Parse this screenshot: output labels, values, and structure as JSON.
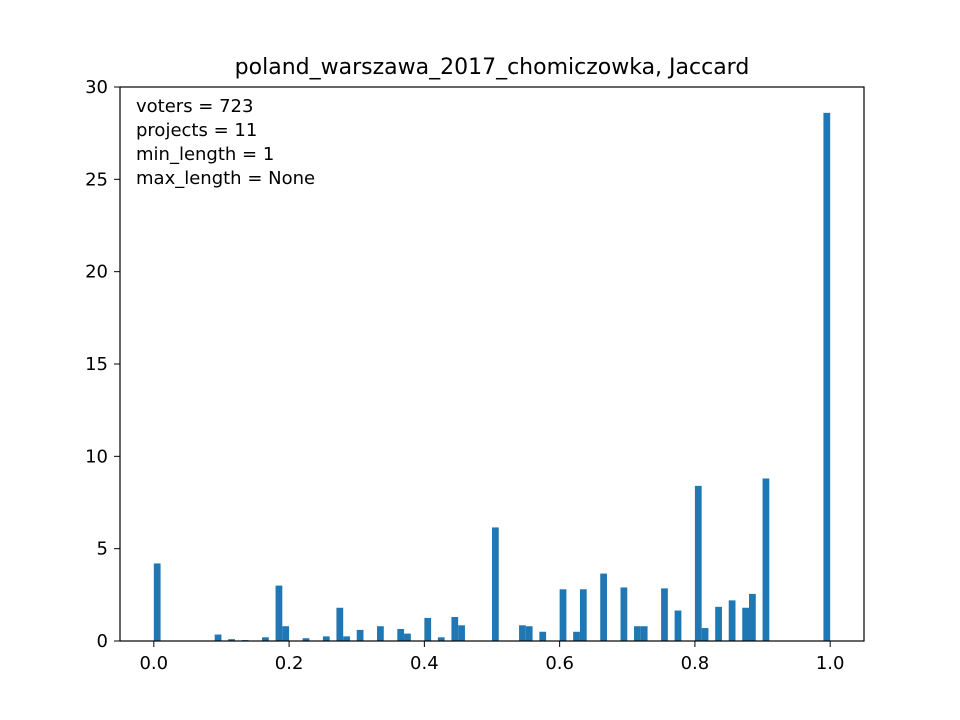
{
  "chart_data": {
    "type": "bar",
    "title": "poland_warszawa_2017_chomiczowka, Jaccard",
    "xlabel": "",
    "ylabel": "",
    "xlim": [
      -0.05,
      1.05
    ],
    "ylim": [
      0,
      30
    ],
    "bar_width": 0.01,
    "bar_color": "#1f77b4",
    "xticks": [
      0.0,
      0.2,
      0.4,
      0.6,
      0.8,
      1.0
    ],
    "xtick_labels": [
      "0.0",
      "0.2",
      "0.4",
      "0.6",
      "0.8",
      "1.0"
    ],
    "yticks": [
      0,
      5,
      10,
      15,
      20,
      25,
      30
    ],
    "ytick_labels": [
      "0",
      "5",
      "10",
      "15",
      "20",
      "25",
      "30"
    ],
    "annotations": [
      "voters = 723",
      "projects = 11",
      "min_length = 1",
      "max_length = None"
    ],
    "annotation_placement": "top-left",
    "x": [
      0.005,
      0.095,
      0.115,
      0.135,
      0.165,
      0.185,
      0.195,
      0.225,
      0.255,
      0.275,
      0.285,
      0.305,
      0.335,
      0.365,
      0.375,
      0.405,
      0.425,
      0.445,
      0.455,
      0.505,
      0.545,
      0.555,
      0.575,
      0.605,
      0.625,
      0.635,
      0.665,
      0.695,
      0.715,
      0.725,
      0.755,
      0.775,
      0.805,
      0.815,
      0.835,
      0.855,
      0.875,
      0.885,
      0.905,
      0.995
    ],
    "values": [
      4.2,
      0.35,
      0.1,
      0.05,
      0.2,
      3.0,
      0.8,
      0.15,
      0.25,
      1.8,
      0.25,
      0.6,
      0.8,
      0.65,
      0.4,
      1.25,
      0.2,
      1.3,
      0.85,
      6.15,
      0.85,
      0.8,
      0.5,
      2.8,
      0.5,
      2.8,
      3.65,
      2.9,
      0.8,
      0.8,
      2.85,
      1.65,
      8.4,
      0.7,
      1.85,
      2.2,
      1.8,
      2.55,
      8.8,
      28.6
    ]
  }
}
